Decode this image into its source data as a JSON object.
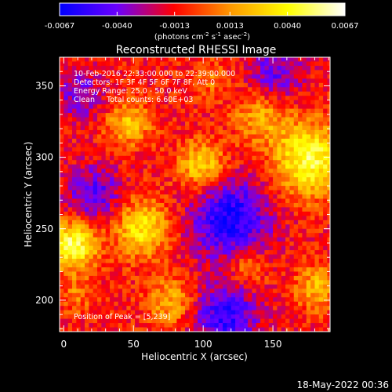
{
  "chart_data": {
    "type": "heatmap",
    "title": "Reconstructed RHESSI Image",
    "xlabel": "Heliocentric X (arcsec)",
    "ylabel": "Heliocentric Y (arcsec)",
    "xlim": [
      -3,
      191
    ],
    "ylim": [
      178,
      370
    ],
    "x_ticks": [
      0,
      50,
      100,
      150
    ],
    "y_ticks": [
      200,
      250,
      300,
      350
    ],
    "x_tick_labels": [
      "0",
      "50",
      "100",
      "150"
    ],
    "y_tick_labels": [
      "200",
      "250",
      "300",
      "350"
    ],
    "colorbar": {
      "min": -0.0067,
      "max": 0.0067,
      "ticks": [
        -0.0067,
        -0.004,
        -0.0013,
        0.0013,
        0.004,
        0.0067
      ],
      "tick_labels": [
        "-0.0067",
        "-0.0040",
        "-0.0013",
        "0.0013",
        "0.0040",
        "0.0067"
      ],
      "unit_parts": [
        "(photons cm",
        "-2",
        " s",
        "-1",
        " asec",
        "-2",
        ")"
      ],
      "colors": [
        "#0000ff",
        "#6a00ff",
        "#ff0000",
        "#ff9900",
        "#ffff00",
        "#ffffff"
      ]
    },
    "annotations": [
      "10-Feb-2016 22:33:00.000 to 22:39:00.000",
      "Detectors: 1F 3F 4F 5F 6F 7F 8F, Att 0",
      "Energy Range: 25.0 - 50.0 keV",
      "Clean     Total counts: 6.60E+03"
    ],
    "peak_label": "Position of Peak = [5,239]",
    "peak": {
      "x": 5,
      "y": 239
    },
    "grid": false,
    "sources": [
      {
        "x": 5,
        "y": 240,
        "amplitude": 0.0062,
        "width": 12
      },
      {
        "x": 55,
        "y": 252,
        "amplitude": 0.0047,
        "width": 14
      },
      {
        "x": 45,
        "y": 325,
        "amplitude": 0.0036,
        "width": 11
      },
      {
        "x": 98,
        "y": 295,
        "amplitude": 0.0044,
        "width": 12
      },
      {
        "x": 175,
        "y": 300,
        "amplitude": 0.0058,
        "width": 18
      },
      {
        "x": 140,
        "y": 330,
        "amplitude": 0.003,
        "width": 13
      },
      {
        "x": 130,
        "y": 225,
        "amplitude": 0.0026,
        "width": 10
      },
      {
        "x": 180,
        "y": 210,
        "amplitude": 0.0032,
        "width": 11
      },
      {
        "x": 75,
        "y": 200,
        "amplitude": 0.003,
        "width": 12
      },
      {
        "x": 8,
        "y": 205,
        "amplitude": 0.0018,
        "width": 9
      },
      {
        "x": 105,
        "y": 355,
        "amplitude": 0.0016,
        "width": 10
      },
      {
        "x": 118,
        "y": 258,
        "amplitude": -0.0052,
        "width": 20
      },
      {
        "x": 115,
        "y": 190,
        "amplitude": -0.0045,
        "width": 16
      },
      {
        "x": 20,
        "y": 275,
        "amplitude": -0.0035,
        "width": 14
      },
      {
        "x": 150,
        "y": 360,
        "amplitude": -0.003,
        "width": 14
      },
      {
        "x": 10,
        "y": 345,
        "amplitude": -0.0028,
        "width": 12
      }
    ]
  },
  "footer": {
    "date": "18-May-2022 00:36"
  }
}
